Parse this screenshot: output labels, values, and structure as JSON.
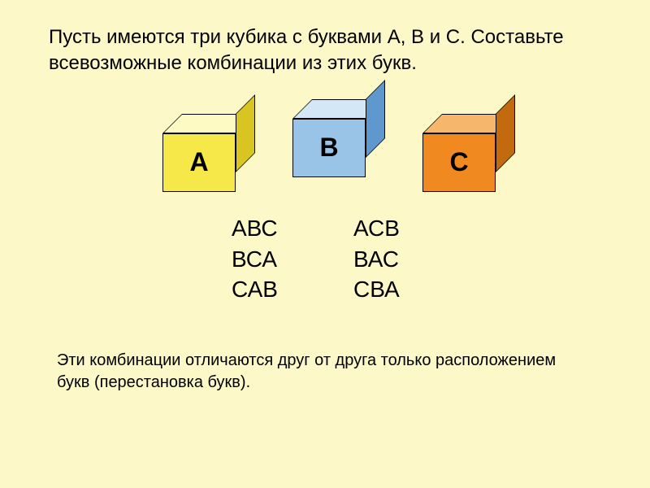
{
  "background_color": "#fcf8c7",
  "task": "Пусть имеются три кубика с буквами А, В и С. Составьте всевозможные комбинации из этих букв.",
  "cubes": [
    {
      "label": "А",
      "front": "#f7e84a",
      "top": "#fdfac4",
      "side": "#d9c522"
    },
    {
      "label": "В",
      "front": "#99c4e8",
      "top": "#d3e7f6",
      "side": "#5f98cc"
    },
    {
      "label": "С",
      "front": "#f08a20",
      "top": "#f6b66c",
      "side": "#c46a0e"
    }
  ],
  "permutations": [
    [
      "АВС",
      "АСВ"
    ],
    [
      "ВСА",
      "ВАС"
    ],
    [
      "САВ",
      "СВА"
    ]
  ],
  "note": "Эти комбинации отличаются друг от друга только расположением букв (перестановка букв).",
  "fonts": {
    "task_size": 24,
    "perm_size": 28,
    "note_size": 20,
    "cube_label_size": 32
  }
}
